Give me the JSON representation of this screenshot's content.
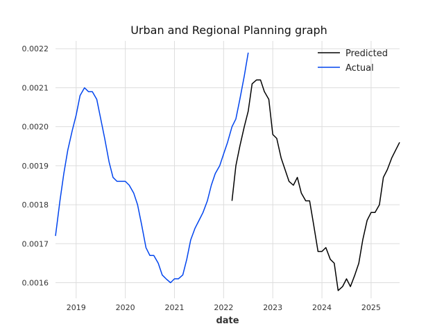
{
  "chart_data": {
    "type": "line",
    "title": "Urban and Regional Planning graph",
    "xlabel": "date",
    "ylabel": "",
    "xlim": [
      2018.58,
      2025.58
    ],
    "ylim": [
      0.00156,
      0.00222
    ],
    "x_ticks": [
      2019,
      2020,
      2021,
      2022,
      2023,
      2024,
      2025
    ],
    "x_tick_labels": [
      "2019",
      "2020",
      "2021",
      "2022",
      "2023",
      "2024",
      "2025"
    ],
    "y_ticks": [
      0.0016,
      0.0017,
      0.0018,
      0.0019,
      0.002,
      0.0021,
      0.0022
    ],
    "y_tick_labels": [
      "0.0016",
      "0.0017",
      "0.0018",
      "0.0019",
      "0.0020",
      "0.0021",
      "0.0022"
    ],
    "grid": true,
    "legend_position": "top-right",
    "series": [
      {
        "name": "Predicted",
        "color": "#000000",
        "x": [
          2022.17,
          2022.25,
          2022.33,
          2022.42,
          2022.5,
          2022.58,
          2022.67,
          2022.75,
          2022.83,
          2022.92,
          2023.0,
          2023.08,
          2023.17,
          2023.25,
          2023.33,
          2023.42,
          2023.5,
          2023.58,
          2023.67,
          2023.75,
          2023.83,
          2023.92,
          2024.0,
          2024.08,
          2024.17,
          2024.25,
          2024.33,
          2024.42,
          2024.5,
          2024.58,
          2024.67,
          2024.75,
          2024.83,
          2024.92,
          2025.0,
          2025.08,
          2025.17,
          2025.25,
          2025.33,
          2025.42,
          2025.5,
          2025.58
        ],
        "y": [
          0.00181,
          0.0019,
          0.00195,
          0.002,
          0.00204,
          0.00211,
          0.00212,
          0.00212,
          0.00209,
          0.00207,
          0.00198,
          0.00197,
          0.00192,
          0.00189,
          0.00186,
          0.00185,
          0.00187,
          0.00183,
          0.00181,
          0.00181,
          0.00175,
          0.00168,
          0.00168,
          0.00169,
          0.00166,
          0.00165,
          0.00158,
          0.00159,
          0.00161,
          0.00159,
          0.00162,
          0.00165,
          0.00171,
          0.00176,
          0.00178,
          0.00178,
          0.0018,
          0.00187,
          0.00189,
          0.00192,
          0.00194,
          0.00196
        ]
      },
      {
        "name": "Actual",
        "color": "#0044ee",
        "x": [
          2018.58,
          2018.67,
          2018.75,
          2018.83,
          2018.92,
          2019.0,
          2019.08,
          2019.17,
          2019.25,
          2019.33,
          2019.42,
          2019.5,
          2019.58,
          2019.67,
          2019.75,
          2019.83,
          2019.92,
          2020.0,
          2020.08,
          2020.17,
          2020.25,
          2020.33,
          2020.42,
          2020.5,
          2020.58,
          2020.67,
          2020.75,
          2020.83,
          2020.92,
          2021.0,
          2021.08,
          2021.17,
          2021.25,
          2021.33,
          2021.42,
          2021.5,
          2021.58,
          2021.67,
          2021.75,
          2021.83,
          2021.92,
          2022.0,
          2022.08,
          2022.17,
          2022.25,
          2022.33,
          2022.42,
          2022.5
        ],
        "y": [
          0.00172,
          0.00181,
          0.00188,
          0.00194,
          0.00199,
          0.00203,
          0.00208,
          0.0021,
          0.00209,
          0.00209,
          0.00207,
          0.00202,
          0.00197,
          0.00191,
          0.00187,
          0.00186,
          0.00186,
          0.00186,
          0.00185,
          0.00183,
          0.0018,
          0.00175,
          0.00169,
          0.00167,
          0.00167,
          0.00165,
          0.00162,
          0.00161,
          0.0016,
          0.00161,
          0.00161,
          0.00162,
          0.00166,
          0.00171,
          0.00174,
          0.00176,
          0.00178,
          0.00181,
          0.00185,
          0.00188,
          0.0019,
          0.00193,
          0.00196,
          0.002,
          0.00202,
          0.00207,
          0.00213,
          0.00219
        ]
      }
    ]
  }
}
